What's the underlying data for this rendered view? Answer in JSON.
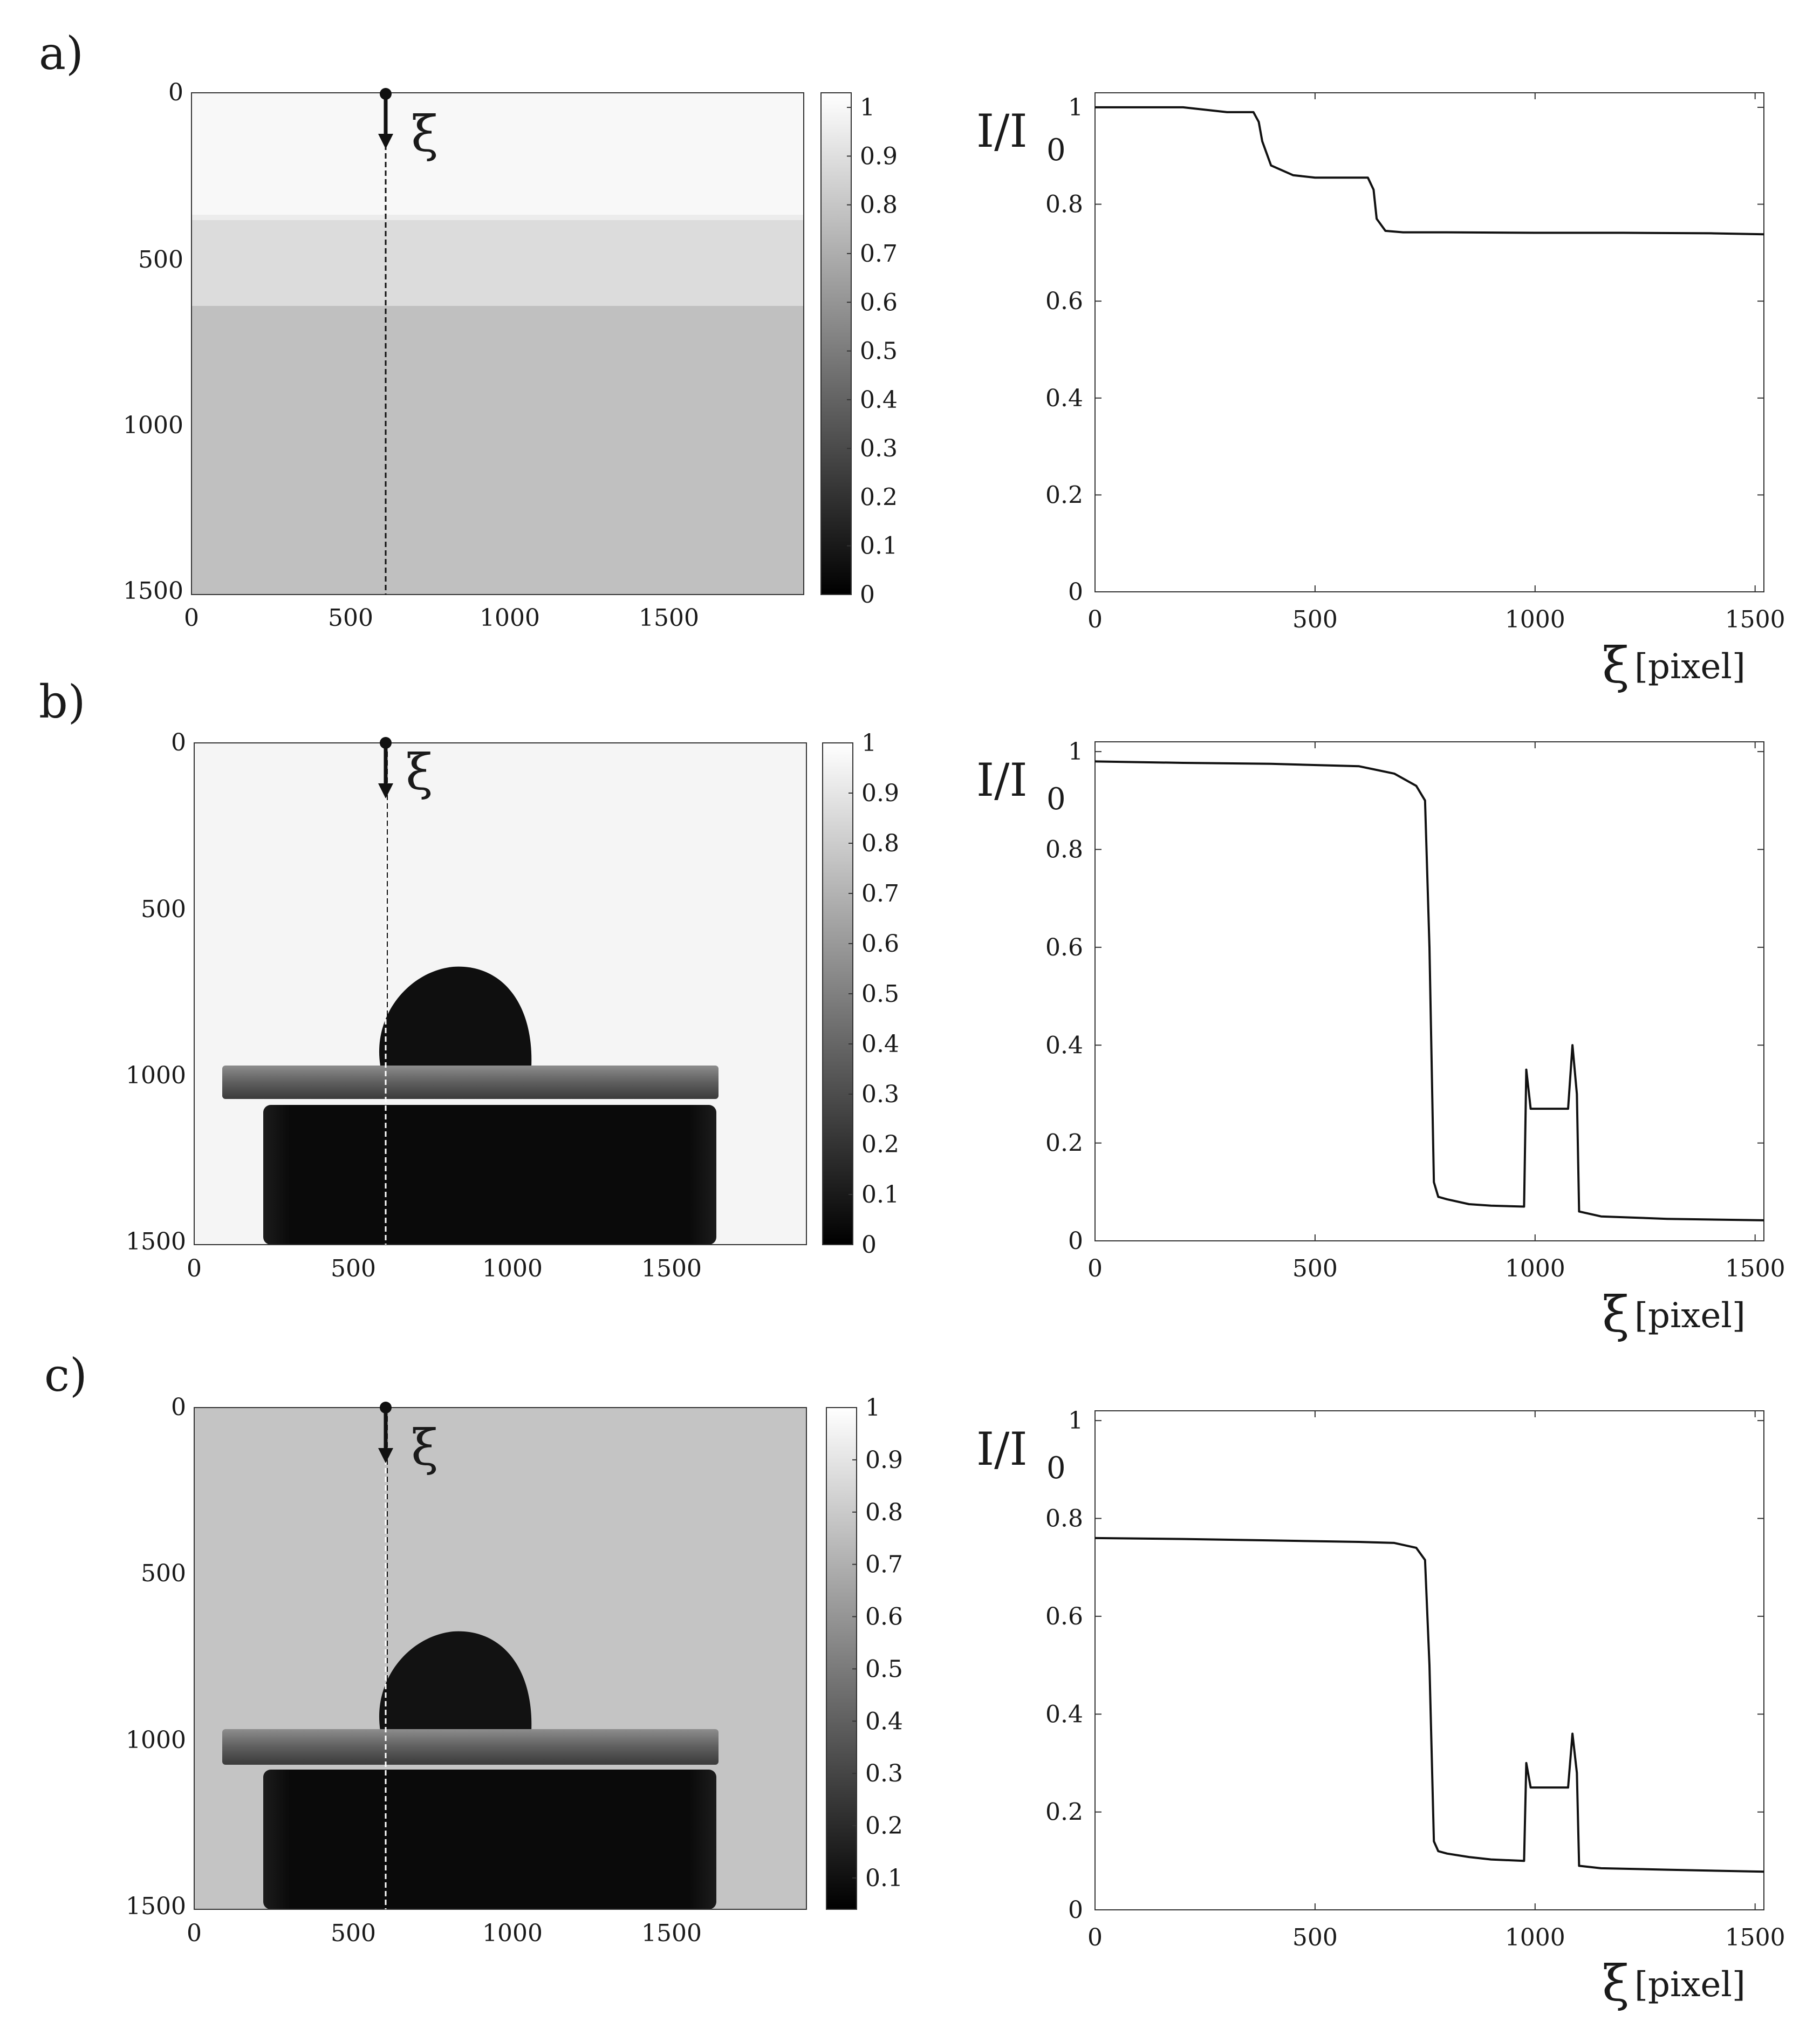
{
  "figure": {
    "panels": [
      {
        "label": "a)",
        "image": {
          "xticks": [
            0,
            500,
            1000,
            1500
          ],
          "yticks": [
            0,
            500,
            1000,
            1500
          ],
          "marker_label": "ξ"
        },
        "colorbar": {
          "ticks": [
            0,
            0.1,
            0.2,
            0.3,
            0.4,
            0.5,
            0.6,
            0.7,
            0.8,
            0.9,
            1
          ],
          "range": [
            0,
            1.03
          ]
        }
      },
      {
        "label": "b)",
        "image": {
          "xticks": [
            0,
            500,
            1000,
            1500
          ],
          "yticks": [
            0,
            500,
            1000,
            1500
          ],
          "marker_label": "ξ"
        },
        "colorbar": {
          "ticks": [
            0,
            0.1,
            0.2,
            0.3,
            0.4,
            0.5,
            0.6,
            0.7,
            0.8,
            0.9,
            1
          ],
          "range": [
            0,
            1.0
          ]
        }
      },
      {
        "label": "c)",
        "image": {
          "xticks": [
            0,
            500,
            1000,
            1500
          ],
          "yticks": [
            0,
            500,
            1000,
            1500
          ],
          "marker_label": "ξ"
        },
        "colorbar": {
          "ticks": [
            0.1,
            0.2,
            0.3,
            0.4,
            0.5,
            0.6,
            0.7,
            0.8,
            0.9,
            1
          ],
          "range": [
            0.04,
            1.0
          ]
        }
      }
    ],
    "colors": {
      "line": "#111111",
      "axis": "#333333",
      "background_a": "#bdbdbd",
      "background_c": "#c4c4c4",
      "dark": "#0c0c0c"
    }
  },
  "chart_data": [
    {
      "type": "line",
      "ylabel": "I/I",
      "ylabel_sub": "0",
      "xlabel_symbol": "ξ",
      "xlabel_unit": "[pixel]",
      "xlim": [
        0,
        1520
      ],
      "ylim": [
        0,
        1.03
      ],
      "xticks": [
        0,
        500,
        1000,
        1500
      ],
      "yticks": [
        "0",
        "0.2",
        "0.4",
        "0.6",
        "0.8",
        "1"
      ],
      "series": [
        {
          "x": [
            0,
            100,
            200,
            300,
            360,
            372,
            380,
            400,
            450,
            500,
            550,
            620,
            633,
            640,
            660,
            700,
            800,
            1000,
            1200,
            1400,
            1520
          ],
          "y": [
            1.0,
            1.0,
            1.0,
            0.99,
            0.99,
            0.97,
            0.93,
            0.88,
            0.86,
            0.855,
            0.855,
            0.855,
            0.83,
            0.77,
            0.745,
            0.742,
            0.742,
            0.741,
            0.741,
            0.74,
            0.738
          ]
        }
      ]
    },
    {
      "type": "line",
      "ylabel": "I/I",
      "ylabel_sub": "0",
      "xlabel_symbol": "ξ",
      "xlabel_unit": "[pixel]",
      "xlim": [
        0,
        1520
      ],
      "ylim": [
        0,
        1.02
      ],
      "xticks": [
        0,
        500,
        1000,
        1500
      ],
      "yticks": [
        "0",
        "0.2",
        "0.4",
        "0.6",
        "0.8",
        "1"
      ],
      "series": [
        {
          "x": [
            0,
            200,
            400,
            600,
            680,
            730,
            750,
            760,
            770,
            780,
            800,
            850,
            900,
            975,
            980,
            990,
            1000,
            1050,
            1075,
            1085,
            1095,
            1100,
            1150,
            1300,
            1520
          ],
          "y": [
            0.98,
            0.977,
            0.975,
            0.97,
            0.955,
            0.93,
            0.9,
            0.6,
            0.12,
            0.09,
            0.085,
            0.075,
            0.072,
            0.07,
            0.35,
            0.27,
            0.27,
            0.27,
            0.27,
            0.4,
            0.3,
            0.06,
            0.05,
            0.045,
            0.042
          ]
        }
      ]
    },
    {
      "type": "line",
      "ylabel": "I/I",
      "ylabel_sub": "0",
      "xlabel_symbol": "ξ",
      "xlabel_unit": "[pixel]",
      "xlim": [
        0,
        1520
      ],
      "ylim": [
        0,
        1.02
      ],
      "xticks": [
        0,
        500,
        1000,
        1500
      ],
      "yticks": [
        "0",
        "0.2",
        "0.4",
        "0.6",
        "0.8",
        "1"
      ],
      "series": [
        {
          "x": [
            0,
            200,
            400,
            600,
            680,
            730,
            750,
            760,
            770,
            780,
            800,
            850,
            900,
            975,
            980,
            990,
            1000,
            1050,
            1075,
            1085,
            1095,
            1100,
            1150,
            1300,
            1520
          ],
          "y": [
            0.76,
            0.758,
            0.755,
            0.752,
            0.75,
            0.74,
            0.715,
            0.5,
            0.14,
            0.12,
            0.115,
            0.108,
            0.103,
            0.1,
            0.3,
            0.25,
            0.25,
            0.25,
            0.25,
            0.36,
            0.28,
            0.09,
            0.085,
            0.082,
            0.078
          ]
        }
      ]
    }
  ]
}
